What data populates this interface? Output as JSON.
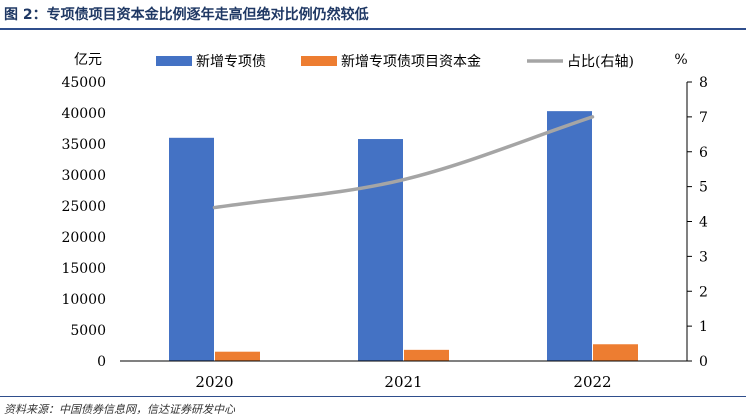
{
  "figure": {
    "title": "图 2：专项债项目资本金比例逐年走高但绝对比例仍然较低",
    "source": "资料来源：中国债券信息网，信达证券研发中心"
  },
  "chart_data": {
    "type": "bar",
    "categories": [
      "2020",
      "2021",
      "2022"
    ],
    "series": [
      {
        "name": "新增专项债",
        "axis": "left",
        "color": "#4472c4",
        "values": [
          36000,
          35800,
          40300
        ]
      },
      {
        "name": "新增专项债项目资本金",
        "axis": "left",
        "color": "#ed7d31",
        "values": [
          1500,
          1800,
          2700
        ]
      },
      {
        "name": "占比(右轴)",
        "axis": "right",
        "type": "line",
        "color": "#a5a5a5",
        "values": [
          4.4,
          5.2,
          7.0
        ]
      }
    ],
    "yunit_left": "亿元",
    "yunit_right": "%",
    "ylim_left": [
      0,
      45000
    ],
    "yticks_left": [
      "0",
      "5000",
      "10000",
      "15000",
      "20000",
      "25000",
      "30000",
      "35000",
      "40000",
      "45000"
    ],
    "ylim_right": [
      0,
      8
    ],
    "yticks_right": [
      "0",
      "1",
      "2",
      "3",
      "4",
      "5",
      "6",
      "7",
      "8"
    ],
    "grid": false,
    "legend_position": "top"
  }
}
